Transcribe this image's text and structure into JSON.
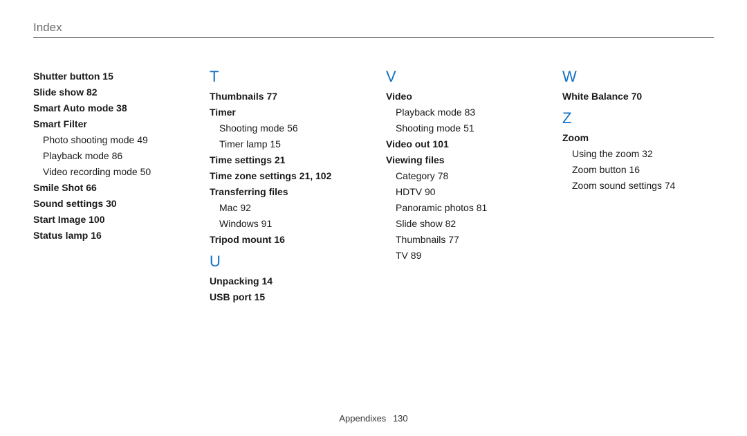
{
  "header": {
    "title": "Index"
  },
  "footer": {
    "section": "Appendixes",
    "page": "130"
  },
  "col1": {
    "entries": [
      {
        "t": "Shutter button  15",
        "b": true
      },
      {
        "t": "Slide show  82",
        "b": true
      },
      {
        "t": "Smart Auto mode  38",
        "b": true
      },
      {
        "t": "Smart Filter",
        "b": true
      },
      {
        "t": "Photo shooting mode  49",
        "b": false,
        "sub": true
      },
      {
        "t": "Playback mode  86",
        "b": false,
        "sub": true
      },
      {
        "t": "Video recording mode  50",
        "b": false,
        "sub": true
      },
      {
        "t": "Smile Shot  66",
        "b": true
      },
      {
        "t": "Sound settings  30",
        "b": true
      },
      {
        "t": "Start Image  100",
        "b": true
      },
      {
        "t": "Status lamp  16",
        "b": true
      }
    ]
  },
  "col2": {
    "groups": [
      {
        "letter": "T",
        "entries": [
          {
            "t": "Thumbnails  77",
            "b": true
          },
          {
            "t": "Timer",
            "b": true
          },
          {
            "t": "Shooting mode  56",
            "b": false,
            "sub": true
          },
          {
            "t": "Timer lamp  15",
            "b": false,
            "sub": true
          },
          {
            "t": "Time settings  21",
            "b": true
          },
          {
            "t": "Time zone settings  21, 102",
            "b": true
          },
          {
            "t": "Transferring files",
            "b": true
          },
          {
            "t": "Mac  92",
            "b": false,
            "sub": true
          },
          {
            "t": "Windows  91",
            "b": false,
            "sub": true
          },
          {
            "t": "Tripod mount  16",
            "b": true
          }
        ]
      },
      {
        "letter": "U",
        "entries": [
          {
            "t": "Unpacking  14",
            "b": true
          },
          {
            "t": "USB port  15",
            "b": true
          }
        ]
      }
    ]
  },
  "col3": {
    "groups": [
      {
        "letter": "V",
        "entries": [
          {
            "t": "Video",
            "b": true
          },
          {
            "t": "Playback mode  83",
            "b": false,
            "sub": true
          },
          {
            "t": "Shooting mode  51",
            "b": false,
            "sub": true
          },
          {
            "t": "Video out  101",
            "b": true
          },
          {
            "t": "Viewing files",
            "b": true
          },
          {
            "t": "Category  78",
            "b": false,
            "sub": true
          },
          {
            "t": "HDTV  90",
            "b": false,
            "sub": true
          },
          {
            "t": "Panoramic photos  81",
            "b": false,
            "sub": true
          },
          {
            "t": "Slide show  82",
            "b": false,
            "sub": true
          },
          {
            "t": "Thumbnails  77",
            "b": false,
            "sub": true
          },
          {
            "t": "TV  89",
            "b": false,
            "sub": true
          }
        ]
      }
    ]
  },
  "col4": {
    "groups": [
      {
        "letter": "W",
        "entries": [
          {
            "t": "White Balance  70",
            "b": true
          }
        ]
      },
      {
        "letter": "Z",
        "entries": [
          {
            "t": "Zoom",
            "b": true
          },
          {
            "t": "Using the zoom  32",
            "b": false,
            "sub": true
          },
          {
            "t": "Zoom button  16",
            "b": false,
            "sub": true
          },
          {
            "t": "Zoom sound settings  74",
            "b": false,
            "sub": true
          }
        ]
      }
    ]
  }
}
